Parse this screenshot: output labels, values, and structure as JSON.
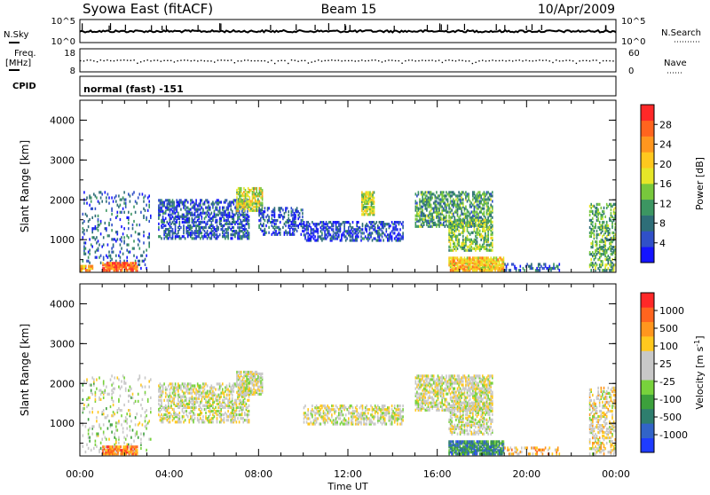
{
  "header": {
    "title": "Syowa East (fitACF)",
    "beam": "Beam 15",
    "date": "10/Apr/2009"
  },
  "status": {
    "nsky_label": "N.Sky",
    "nsky_ticks": [
      "10^5",
      "10^0"
    ],
    "nsearch_label": "N.Search",
    "nsearch_ticks": [
      "10^5",
      "10^0"
    ],
    "freq_label": "Freq.",
    "freq_unit": "[MHz]",
    "freq_ticks": [
      "18",
      "8"
    ],
    "nave_label": "Nave",
    "nave_ticks": [
      "60",
      "0"
    ],
    "cpid_label": "CPID",
    "cpid_value": "normal (fast) -151"
  },
  "chart_data": [
    {
      "type": "heatmap",
      "name": "power",
      "ylabel": "Slant Range [km]",
      "xlabel": "",
      "yticks": [
        "1000",
        "2000",
        "3000",
        "4000"
      ],
      "ylim": [
        180,
        4500
      ],
      "xlim": [
        0,
        24
      ],
      "colorbar": {
        "label": "Power [dB]",
        "ticks": [
          "4",
          "8",
          "12",
          "16",
          "20",
          "24",
          "28"
        ],
        "colors": [
          "#1414ff",
          "#3050c8",
          "#2e6e78",
          "#3c9662",
          "#78c83c",
          "#e6e628",
          "#ffc81e",
          "#ff961e",
          "#ff641e",
          "#ff2828"
        ]
      },
      "regions": [
        {
          "t": [
            0.1,
            3.2
          ],
          "r": [
            250,
            2200
          ],
          "level": 0.2,
          "density": 0.12
        },
        {
          "t": [
            1.0,
            2.6
          ],
          "r": [
            200,
            420
          ],
          "level": 0.85,
          "density": 0.85
        },
        {
          "t": [
            0.0,
            0.6
          ],
          "r": [
            200,
            350
          ],
          "level": 0.7,
          "density": 0.7
        },
        {
          "t": [
            3.5,
            7.6
          ],
          "r": [
            1000,
            2000
          ],
          "level": 0.18,
          "density": 0.5
        },
        {
          "t": [
            7.0,
            8.2
          ],
          "r": [
            1700,
            2300
          ],
          "level": 0.55,
          "density": 0.7
        },
        {
          "t": [
            8.0,
            10.0
          ],
          "r": [
            1100,
            1800
          ],
          "level": 0.15,
          "density": 0.35
        },
        {
          "t": [
            10.0,
            14.5
          ],
          "r": [
            950,
            1450
          ],
          "level": 0.15,
          "density": 0.5
        },
        {
          "t": [
            12.6,
            13.2
          ],
          "r": [
            1600,
            2200
          ],
          "level": 0.5,
          "density": 0.75
        },
        {
          "t": [
            15.0,
            18.5
          ],
          "r": [
            1300,
            2200
          ],
          "level": 0.35,
          "density": 0.55
        },
        {
          "t": [
            16.5,
            18.5
          ],
          "r": [
            700,
            1500
          ],
          "level": 0.45,
          "density": 0.5
        },
        {
          "t": [
            16.5,
            19.0
          ],
          "r": [
            200,
            550
          ],
          "level": 0.65,
          "density": 0.85
        },
        {
          "t": [
            19.0,
            21.5
          ],
          "r": [
            200,
            400
          ],
          "level": 0.2,
          "density": 0.35
        },
        {
          "t": [
            22.8,
            24.0
          ],
          "r": [
            200,
            1900
          ],
          "level": 0.4,
          "density": 0.45
        }
      ]
    },
    {
      "type": "heatmap",
      "name": "velocity",
      "ylabel": "Slant Range [km]",
      "xlabel": "Time UT",
      "xticks": [
        "00:00",
        "04:00",
        "08:00",
        "12:00",
        "16:00",
        "20:00",
        "00:00"
      ],
      "yticks": [
        "1000",
        "2000",
        "3000",
        "4000"
      ],
      "ylim": [
        180,
        4500
      ],
      "xlim": [
        0,
        24
      ],
      "colorbar": {
        "label": "Velocity [m s^-1]",
        "ticks": [
          "1000",
          "500",
          "100",
          "25",
          "-25",
          "-100",
          "-500",
          "-1000"
        ],
        "colors": [
          "#1e3cff",
          "#3264c8",
          "#2e7e6e",
          "#3ca03c",
          "#78d23c",
          "#c8c8c8",
          "#c8c8c8",
          "#ffc81e",
          "#ff961e",
          "#ff641e",
          "#ff2828"
        ]
      },
      "regions": [
        {
          "t": [
            0.1,
            3.2
          ],
          "r": [
            250,
            2200
          ],
          "level": 0.5,
          "density": 0.12
        },
        {
          "t": [
            1.0,
            2.6
          ],
          "r": [
            200,
            420
          ],
          "level": 0.8,
          "density": 0.85
        },
        {
          "t": [
            3.5,
            7.6
          ],
          "r": [
            1000,
            2000
          ],
          "level": 0.55,
          "density": 0.45
        },
        {
          "t": [
            7.0,
            8.2
          ],
          "r": [
            1700,
            2300
          ],
          "level": 0.55,
          "density": 0.7
        },
        {
          "t": [
            10.0,
            14.5
          ],
          "r": [
            950,
            1450
          ],
          "level": 0.55,
          "density": 0.5
        },
        {
          "t": [
            15.0,
            18.5
          ],
          "r": [
            1300,
            2200
          ],
          "level": 0.55,
          "density": 0.6
        },
        {
          "t": [
            16.5,
            18.5
          ],
          "r": [
            700,
            1500
          ],
          "level": 0.55,
          "density": 0.5
        },
        {
          "t": [
            16.5,
            19.0
          ],
          "r": [
            200,
            550
          ],
          "level": 0.25,
          "density": 0.85
        },
        {
          "t": [
            19.0,
            21.5
          ],
          "r": [
            200,
            400
          ],
          "level": 0.7,
          "density": 0.35
        },
        {
          "t": [
            22.8,
            24.0
          ],
          "r": [
            200,
            1900
          ],
          "level": 0.6,
          "density": 0.45
        }
      ]
    }
  ]
}
